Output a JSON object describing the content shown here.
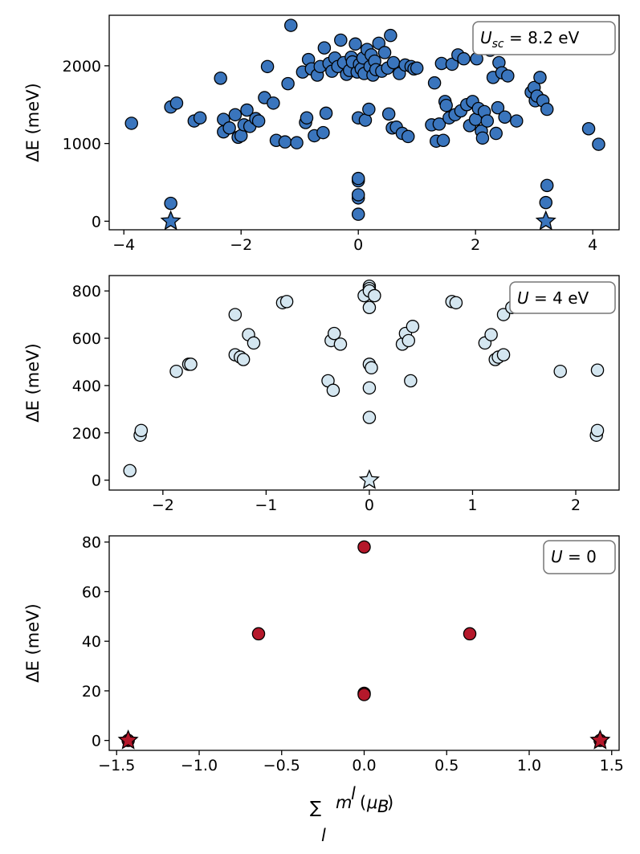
{
  "chart_data": [
    {
      "type": "scatter",
      "annotation": {
        "math": "U",
        "sub": "sc",
        "rest": " = 8.2 eV"
      },
      "ylabel": "ΔE (meV)",
      "xlabel": "",
      "xlim": [
        -4.25,
        4.45
      ],
      "ylim": [
        -110,
        2650
      ],
      "xticks": [
        -4,
        -2,
        0,
        2,
        4
      ],
      "xtick_labels": [
        "−4",
        "−2",
        "0",
        "2",
        "4"
      ],
      "yticks": [
        0,
        1000,
        2000
      ],
      "ytick_labels": [
        "0",
        "1000",
        "2000"
      ],
      "color": "#3a75bd",
      "stars": [
        [
          -3.2,
          0
        ],
        [
          3.2,
          0
        ]
      ],
      "points": [
        [
          -3.87,
          1260
        ],
        [
          -3.2,
          1470
        ],
        [
          -3.1,
          1520
        ],
        [
          -2.8,
          1290
        ],
        [
          -2.7,
          1330
        ],
        [
          -2.35,
          1840
        ],
        [
          -2.3,
          1150
        ],
        [
          -2.3,
          1310
        ],
        [
          -2.2,
          1200
        ],
        [
          -2.1,
          1370
        ],
        [
          -2.05,
          1080
        ],
        [
          -2,
          1100
        ],
        [
          -1.95,
          1240
        ],
        [
          -1.9,
          1430
        ],
        [
          -1.85,
          1220
        ],
        [
          -1.75,
          1320
        ],
        [
          -1.7,
          1290
        ],
        [
          -1.6,
          1590
        ],
        [
          -1.55,
          1990
        ],
        [
          -1.45,
          1520
        ],
        [
          -1.4,
          1040
        ],
        [
          -1.25,
          1020
        ],
        [
          -1.2,
          1770
        ],
        [
          -1.15,
          2520
        ],
        [
          -1.05,
          1010
        ],
        [
          -0.95,
          1920
        ],
        [
          -0.9,
          1270
        ],
        [
          -0.88,
          1330
        ],
        [
          -0.85,
          2080
        ],
        [
          -0.8,
          1960
        ],
        [
          -0.75,
          1100
        ],
        [
          -0.7,
          1880
        ],
        [
          -0.65,
          1990
        ],
        [
          -0.6,
          1140
        ],
        [
          -0.58,
          2230
        ],
        [
          -0.55,
          1390
        ],
        [
          -0.5,
          2030
        ],
        [
          -0.45,
          1930
        ],
        [
          -0.4,
          2100
        ],
        [
          -0.35,
          1990
        ],
        [
          -0.3,
          2330
        ],
        [
          -0.25,
          2040
        ],
        [
          -0.2,
          1890
        ],
        [
          -0.15,
          1940
        ],
        [
          -0.12,
          2110
        ],
        [
          -0.1,
          2050
        ],
        [
          -0.05,
          2280
        ],
        [
          -0.02,
          1920
        ],
        [
          0,
          1330
        ],
        [
          0.02,
          2020
        ],
        [
          0.05,
          1960
        ],
        [
          0.08,
          2100
        ],
        [
          0.1,
          1900
        ],
        [
          0.12,
          1300
        ],
        [
          0.15,
          2210
        ],
        [
          0.18,
          1440
        ],
        [
          0.2,
          1990
        ],
        [
          0.22,
          2140
        ],
        [
          0.25,
          1880
        ],
        [
          0.28,
          2060
        ],
        [
          0.3,
          1950
        ],
        [
          0.35,
          2290
        ],
        [
          0.4,
          1930
        ],
        [
          0.45,
          2170
        ],
        [
          0.5,
          1970
        ],
        [
          0.52,
          1380
        ],
        [
          0.55,
          2390
        ],
        [
          0.58,
          1200
        ],
        [
          0.6,
          2040
        ],
        [
          0.65,
          1210
        ],
        [
          0.7,
          1900
        ],
        [
          0.75,
          1130
        ],
        [
          0.8,
          2010
        ],
        [
          0.85,
          1090
        ],
        [
          0.9,
          1990
        ],
        [
          0.95,
          1960
        ],
        [
          1.0,
          1970
        ],
        [
          1.25,
          1240
        ],
        [
          1.3,
          1780
        ],
        [
          1.33,
          1030
        ],
        [
          1.38,
          1250
        ],
        [
          1.42,
          2030
        ],
        [
          1.45,
          1040
        ],
        [
          1.48,
          1540
        ],
        [
          1.5,
          1490
        ],
        [
          1.55,
          1330
        ],
        [
          1.6,
          2020
        ],
        [
          1.65,
          1370
        ],
        [
          1.7,
          2140
        ],
        [
          1.75,
          1420
        ],
        [
          1.8,
          2090
        ],
        [
          1.85,
          1500
        ],
        [
          1.9,
          1230
        ],
        [
          1.95,
          1540
        ],
        [
          2.0,
          1310
        ],
        [
          2.02,
          2090
        ],
        [
          2.05,
          1450
        ],
        [
          2.1,
          1160
        ],
        [
          2.12,
          1070
        ],
        [
          2.15,
          1410
        ],
        [
          2.2,
          1290
        ],
        [
          2.25,
          2200
        ],
        [
          2.3,
          1850
        ],
        [
          2.35,
          1130
        ],
        [
          2.38,
          1460
        ],
        [
          2.4,
          2040
        ],
        [
          2.45,
          1910
        ],
        [
          2.5,
          1340
        ],
        [
          2.55,
          1870
        ],
        [
          2.7,
          1290
        ],
        [
          2.95,
          1660
        ],
        [
          3.0,
          1720
        ],
        [
          3.02,
          1550
        ],
        [
          3.05,
          1610
        ],
        [
          3.1,
          1850
        ],
        [
          3.15,
          1550
        ],
        [
          3.22,
          1440
        ],
        [
          4.1,
          990
        ],
        [
          3.93,
          1190
        ],
        [
          -3.2,
          230
        ],
        [
          0,
          90
        ],
        [
          0,
          300
        ],
        [
          0,
          340
        ],
        [
          0,
          520
        ],
        [
          0,
          550
        ],
        [
          3.2,
          240
        ],
        [
          3.22,
          460
        ]
      ]
    },
    {
      "type": "scatter",
      "annotation": {
        "math": "U",
        "sub": "",
        "rest": " = 4 eV"
      },
      "ylabel": "ΔE (meV)",
      "xlabel": "",
      "xlim": [
        -2.52,
        2.42
      ],
      "ylim": [
        -42,
        865
      ],
      "xticks": [
        -2,
        -1,
        0,
        1,
        2
      ],
      "xtick_labels": [
        "−2",
        "−1",
        "0",
        "1",
        "2"
      ],
      "yticks": [
        0,
        200,
        400,
        600,
        800
      ],
      "ytick_labels": [
        "0",
        "200",
        "400",
        "600",
        "800"
      ],
      "color": "#d4e6f0",
      "stars": [
        [
          0,
          0
        ]
      ],
      "points": [
        [
          -2.32,
          40
        ],
        [
          -2.22,
          190
        ],
        [
          -2.21,
          210
        ],
        [
          -1.87,
          460
        ],
        [
          -1.75,
          490
        ],
        [
          -1.73,
          490
        ],
        [
          -1.3,
          700
        ],
        [
          -1.3,
          530
        ],
        [
          -1.25,
          520
        ],
        [
          -1.22,
          510
        ],
        [
          -1.17,
          615
        ],
        [
          -1.12,
          580
        ],
        [
          -0.84,
          750
        ],
        [
          -0.8,
          755
        ],
        [
          -0.4,
          420
        ],
        [
          -0.37,
          590
        ],
        [
          -0.35,
          380
        ],
        [
          -0.34,
          620
        ],
        [
          -0.28,
          575
        ],
        [
          -0.05,
          780
        ],
        [
          0,
          820
        ],
        [
          0,
          810
        ],
        [
          0,
          800
        ],
        [
          0,
          730
        ],
        [
          0,
          490
        ],
        [
          0,
          390
        ],
        [
          0,
          265
        ],
        [
          0.02,
          475
        ],
        [
          0.05,
          780
        ],
        [
          0.32,
          575
        ],
        [
          0.35,
          620
        ],
        [
          0.38,
          590
        ],
        [
          0.42,
          650
        ],
        [
          0.4,
          420
        ],
        [
          0.8,
          755
        ],
        [
          0.84,
          750
        ],
        [
          1.12,
          580
        ],
        [
          1.18,
          615
        ],
        [
          1.22,
          510
        ],
        [
          1.25,
          520
        ],
        [
          1.3,
          530
        ],
        [
          1.3,
          700
        ],
        [
          1.38,
          730
        ],
        [
          1.85,
          460
        ],
        [
          2.2,
          190
        ],
        [
          2.21,
          210
        ],
        [
          2.21,
          465
        ]
      ]
    },
    {
      "type": "scatter",
      "annotation": {
        "math": "U",
        "sub": "",
        "rest": " = 0"
      },
      "ylabel": "ΔE (meV)",
      "xlabel": "Σ_l m^l (μ_B)",
      "xlim": [
        -1.545,
        1.545
      ],
      "ylim": [
        -4,
        82.5
      ],
      "xticks": [
        -1.5,
        -1.0,
        -0.5,
        0.0,
        0.5,
        1.0,
        1.5
      ],
      "xtick_labels": [
        "−1.5",
        "−1.0",
        "−0.5",
        "0.0",
        "0.5",
        "1.0",
        "1.5"
      ],
      "yticks": [
        0,
        20,
        40,
        60,
        80
      ],
      "ytick_labels": [
        "0",
        "20",
        "40",
        "60",
        "80"
      ],
      "color": "#b5182b",
      "stars": [
        [
          -1.43,
          0
        ],
        [
          1.43,
          0
        ]
      ],
      "points": [
        [
          0,
          78
        ],
        [
          -0.64,
          43
        ],
        [
          0.64,
          43
        ],
        [
          0,
          19
        ],
        [
          0,
          18.5
        ],
        [
          -1.43,
          0
        ],
        [
          1.43,
          0
        ]
      ]
    }
  ]
}
